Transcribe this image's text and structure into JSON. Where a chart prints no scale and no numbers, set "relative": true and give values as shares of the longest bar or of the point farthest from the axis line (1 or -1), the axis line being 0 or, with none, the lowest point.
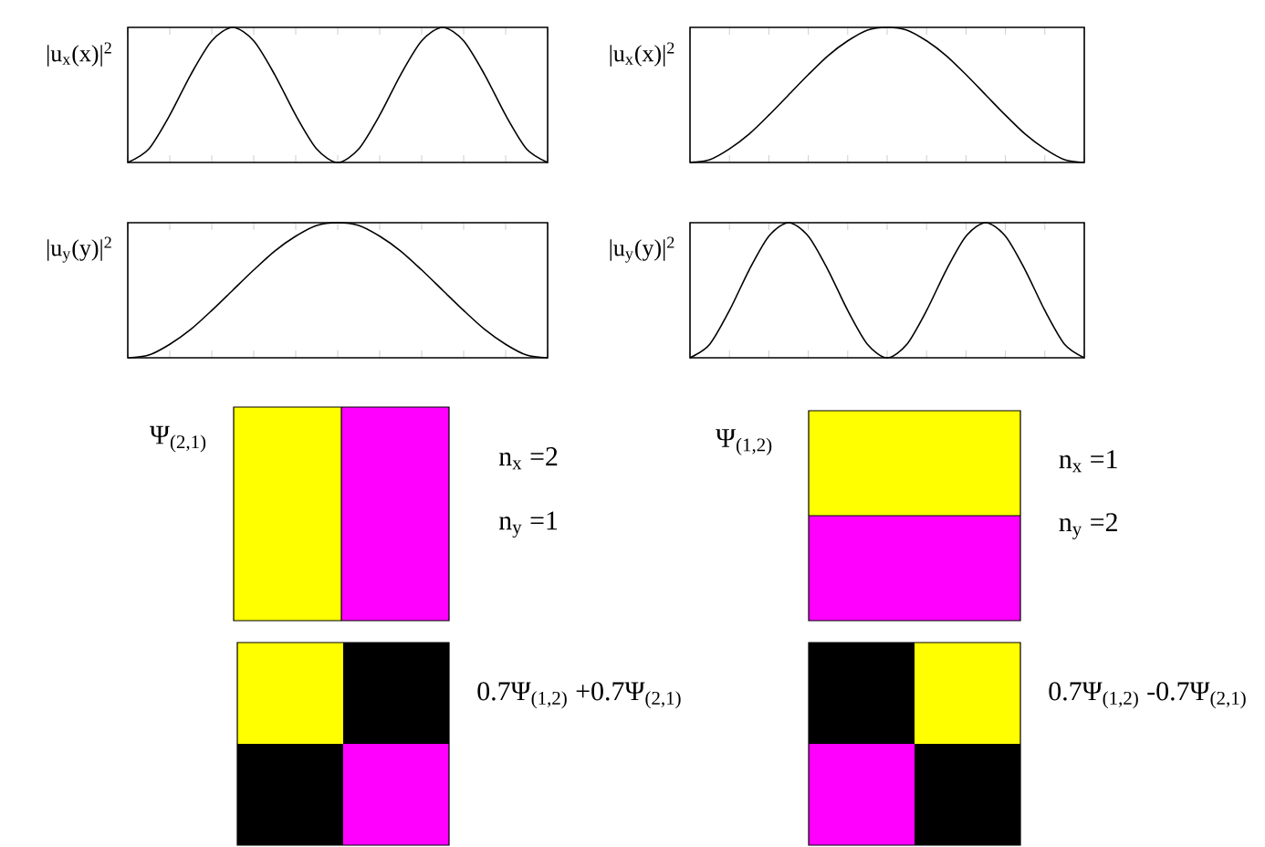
{
  "chart_data": [
    {
      "type": "line",
      "relative": true,
      "ylabel": "|u$_{x}$(x)|$^{2}$",
      "color": "#000000",
      "categories": [
        null,
        null,
        null,
        null,
        null,
        null,
        null,
        null,
        null,
        null,
        null,
        null,
        null,
        null,
        null,
        null,
        null,
        null,
        null,
        null,
        null
      ],
      "values": [
        0,
        0.1,
        0.35,
        0.65,
        0.9,
        1,
        0.9,
        0.65,
        0.35,
        0.1,
        0,
        0.1,
        0.35,
        0.65,
        0.9,
        1,
        0.9,
        0.65,
        0.35,
        0.1,
        0
      ]
    },
    {
      "type": "line",
      "relative": true,
      "ylabel": "|u$_{x}$(x)|$^{2}$",
      "color": "#000000",
      "categories": [
        null,
        null,
        null,
        null,
        null,
        null,
        null,
        null,
        null,
        null,
        null,
        null,
        null,
        null,
        null,
        null,
        null,
        null,
        null,
        null,
        null
      ],
      "values": [
        0,
        0.02,
        0.1,
        0.21,
        0.35,
        0.5,
        0.65,
        0.79,
        0.9,
        0.98,
        1,
        0.98,
        0.9,
        0.79,
        0.65,
        0.5,
        0.35,
        0.21,
        0.1,
        0.02,
        0
      ]
    },
    {
      "type": "line",
      "relative": true,
      "ylabel": "|u$_{y}$(y)|$^{2}$",
      "color": "#000000",
      "categories": [
        null,
        null,
        null,
        null,
        null,
        null,
        null,
        null,
        null,
        null,
        null,
        null,
        null,
        null,
        null,
        null,
        null,
        null,
        null,
        null,
        null
      ],
      "values": [
        0,
        0.02,
        0.1,
        0.21,
        0.35,
        0.5,
        0.65,
        0.79,
        0.9,
        0.98,
        1,
        0.98,
        0.9,
        0.79,
        0.65,
        0.5,
        0.35,
        0.21,
        0.1,
        0.02,
        0
      ]
    },
    {
      "type": "line",
      "relative": true,
      "ylabel": "|u$_{y}$(y)|$^{2}$",
      "color": "#000000",
      "categories": [
        null,
        null,
        null,
        null,
        null,
        null,
        null,
        null,
        null,
        null,
        null,
        null,
        null,
        null,
        null,
        null,
        null,
        null,
        null,
        null,
        null
      ],
      "values": [
        0,
        0.1,
        0.35,
        0.65,
        0.9,
        1,
        0.9,
        0.65,
        0.35,
        0.1,
        0,
        0.1,
        0.35,
        0.65,
        0.9,
        1,
        0.9,
        0.65,
        0.35,
        0.1,
        0
      ]
    },
    {
      "type": "other",
      "title": "Ψ$_{(2,1)}$",
      "annotations": [
        "n$_{x}$ =2",
        "n$_{y}$ =1"
      ]
    },
    {
      "type": "other",
      "title": "Ψ$_{(1,2)}$",
      "annotations": [
        "n$_{x}$ =1",
        "n$_{y}$ =2"
      ]
    },
    {
      "type": "other",
      "title": "0.7Ψ$_{(1,2)}$ +0.7Ψ$_{(2,1)}$"
    },
    {
      "type": "other",
      "title": "0.7Ψ$_{(1,2)}$ -0.7Ψ$_{(2,1)}$"
    }
  ]
}
